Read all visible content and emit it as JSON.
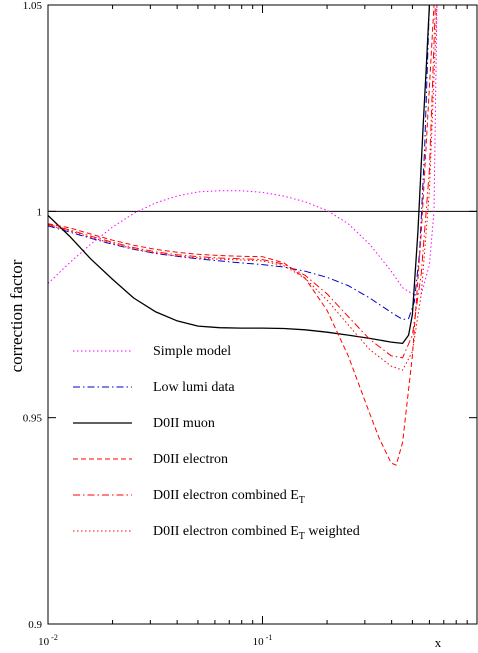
{
  "chart_data": {
    "type": "line",
    "title": "",
    "xlabel": "x",
    "ylabel": "correction factor",
    "x_scale": "log",
    "xlim": [
      0.01,
      1.0
    ],
    "ylim": [
      0.9,
      1.05
    ],
    "x_ticks": [
      {
        "value": 0.01,
        "base": "10",
        "exp": "-2"
      },
      {
        "value": 0.1,
        "base": "10",
        "exp": "-1"
      }
    ],
    "y_ticks": [
      {
        "value": 0.9,
        "label": "0.9"
      },
      {
        "value": 0.95,
        "label": "0.95"
      },
      {
        "value": 1.0,
        "label": "1"
      },
      {
        "value": 1.05,
        "label": "1.05"
      }
    ],
    "reference_line": {
      "y": 1.0,
      "color": "#000000"
    },
    "grid": false,
    "legend_position": "bottom-left",
    "legend_entries": [
      {
        "text": "Simple model",
        "sub": "",
        "suffix": ""
      },
      {
        "text": "Low lumi data",
        "sub": "",
        "suffix": ""
      },
      {
        "text": "D0II muon",
        "sub": "",
        "suffix": ""
      },
      {
        "text": "D0II electron",
        "sub": "",
        "suffix": ""
      },
      {
        "text": "D0II electron combined E",
        "sub": "T",
        "suffix": ""
      },
      {
        "text": "D0II electron combined E",
        "sub": "T",
        "suffix": " weighted"
      }
    ],
    "series": [
      {
        "color": "#ff00ff",
        "dash": "1.5,2.5",
        "width": 1,
        "x": [
          0.01,
          0.0126,
          0.0158,
          0.02,
          0.0251,
          0.0316,
          0.0398,
          0.0501,
          0.0631,
          0.0794,
          0.1,
          0.126,
          0.158,
          0.2,
          0.251,
          0.316,
          0.398,
          0.45,
          0.5,
          0.55,
          0.6,
          0.63,
          0.65
        ],
        "y": [
          0.9825,
          0.9875,
          0.992,
          0.9962,
          0.9995,
          1.002,
          1.0037,
          1.0047,
          1.005,
          1.005,
          1.0046,
          1.0037,
          1.0023,
          1.0002,
          0.997,
          0.992,
          0.9855,
          0.9815,
          0.98,
          0.98,
          0.987,
          1.0,
          1.05
        ]
      },
      {
        "color": "#0000cc",
        "dash": "7,3,1.5,3",
        "width": 1,
        "x": [
          0.01,
          0.0126,
          0.0158,
          0.02,
          0.0251,
          0.0316,
          0.0398,
          0.0501,
          0.0631,
          0.0794,
          0.1,
          0.126,
          0.158,
          0.2,
          0.251,
          0.316,
          0.398,
          0.45,
          0.48,
          0.51,
          0.54,
          0.57,
          0.6
        ],
        "y": [
          0.9965,
          0.995,
          0.9935,
          0.992,
          0.9908,
          0.9898,
          0.9891,
          0.9885,
          0.988,
          0.9875,
          0.9871,
          0.9865,
          0.9855,
          0.984,
          0.982,
          0.979,
          0.9755,
          0.9738,
          0.974,
          0.978,
          0.99,
          1.015,
          1.05
        ]
      },
      {
        "color": "#000000",
        "dash": "",
        "width": 1.3,
        "x": [
          0.01,
          0.0126,
          0.0158,
          0.02,
          0.0251,
          0.0316,
          0.0398,
          0.0501,
          0.0631,
          0.0794,
          0.1,
          0.126,
          0.158,
          0.2,
          0.251,
          0.316,
          0.398,
          0.45,
          0.48,
          0.5,
          0.53,
          0.56,
          0.58,
          0.6
        ],
        "y": [
          0.999,
          0.994,
          0.9885,
          0.9835,
          0.979,
          0.9757,
          0.9735,
          0.9722,
          0.9718,
          0.9717,
          0.9717,
          0.9716,
          0.9713,
          0.9707,
          0.97,
          0.9692,
          0.9683,
          0.968,
          0.97,
          0.975,
          0.995,
          1.02,
          1.035,
          1.05
        ]
      },
      {
        "color": "#ff0000",
        "dash": "5,3",
        "width": 1,
        "x": [
          0.01,
          0.0126,
          0.0158,
          0.02,
          0.0251,
          0.0316,
          0.0398,
          0.0501,
          0.0631,
          0.0794,
          0.1,
          0.126,
          0.158,
          0.2,
          0.251,
          0.316,
          0.35,
          0.398,
          0.42,
          0.45,
          0.5,
          0.55,
          0.6,
          0.63
        ],
        "y": [
          0.997,
          0.996,
          0.9945,
          0.993,
          0.9918,
          0.9908,
          0.9901,
          0.9896,
          0.9893,
          0.9891,
          0.989,
          0.9875,
          0.9838,
          0.976,
          0.965,
          0.951,
          0.945,
          0.939,
          0.9385,
          0.944,
          0.965,
          0.995,
          1.03,
          1.05
        ]
      },
      {
        "color": "#ff0000",
        "dash": "7,3,1.5,3",
        "width": 1,
        "x": [
          0.01,
          0.0126,
          0.0158,
          0.02,
          0.0251,
          0.0316,
          0.0398,
          0.0501,
          0.0631,
          0.0794,
          0.1,
          0.126,
          0.158,
          0.2,
          0.251,
          0.316,
          0.398,
          0.45,
          0.5,
          0.55,
          0.6,
          0.64
        ],
        "y": [
          0.9968,
          0.9955,
          0.994,
          0.9925,
          0.9912,
          0.9902,
          0.9895,
          0.989,
          0.9887,
          0.9885,
          0.9883,
          0.9872,
          0.9845,
          0.98,
          0.9745,
          0.969,
          0.965,
          0.9645,
          0.97,
          0.985,
          1.01,
          1.05
        ]
      },
      {
        "color": "#ff0000",
        "dash": "1.5,2.5",
        "width": 1,
        "x": [
          0.01,
          0.0126,
          0.0158,
          0.02,
          0.0251,
          0.0316,
          0.0398,
          0.0501,
          0.0631,
          0.0794,
          0.1,
          0.126,
          0.158,
          0.2,
          0.251,
          0.316,
          0.398,
          0.45,
          0.5,
          0.55,
          0.6,
          0.65
        ],
        "y": [
          0.9967,
          0.9953,
          0.9937,
          0.9922,
          0.9909,
          0.9899,
          0.9892,
          0.9887,
          0.9884,
          0.9882,
          0.988,
          0.9868,
          0.9838,
          0.9785,
          0.9725,
          0.9665,
          0.9625,
          0.9615,
          0.966,
          0.98,
          1.005,
          1.05
        ]
      }
    ]
  }
}
